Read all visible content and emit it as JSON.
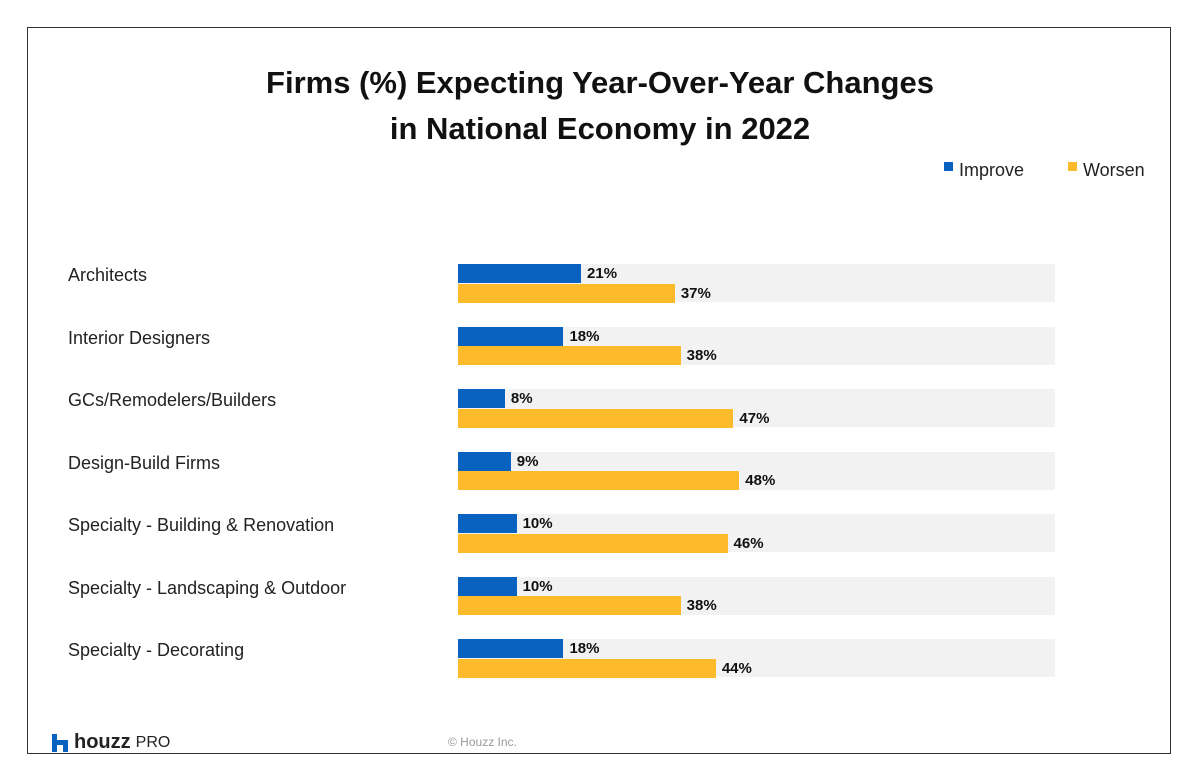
{
  "chart_data": {
    "type": "bar",
    "orientation": "horizontal",
    "title": "Firms (%) Expecting Year-Over-Year Changes in National Economy in 2022",
    "title_lines": [
      "Firms (%) Expecting Year-Over-Year Changes",
      "in National Economy in 2022"
    ],
    "categories": [
      "Architects",
      "Interior Designers",
      "GCs/Remodelers/Builders",
      "Design-Build Firms",
      "Specialty - Building & Renovation",
      "Specialty - Landscaping & Outdoor",
      "Specialty - Decorating"
    ],
    "series": [
      {
        "name": "Improve",
        "color": "#0a62c0",
        "values": [
          21,
          18,
          8,
          9,
          10,
          10,
          18
        ],
        "labels": [
          "21%",
          "18%",
          "8%",
          "9%",
          "10%",
          "10%",
          "18%"
        ]
      },
      {
        "name": "Worsen",
        "color": "#fdbb2c",
        "values": [
          37,
          38,
          47,
          48,
          46,
          38,
          44
        ],
        "labels": [
          "37%",
          "38%",
          "47%",
          "48%",
          "46%",
          "38%",
          "44%"
        ]
      }
    ],
    "xlim": [
      0,
      102
    ],
    "legend": "top-right",
    "grid": false,
    "track_color": "#f2f2f2"
  },
  "footer": {
    "brand": "houzz",
    "brand_suffix": "PRO",
    "copyright": "© Houzz Inc.",
    "brand_color": "#0a62c0"
  }
}
